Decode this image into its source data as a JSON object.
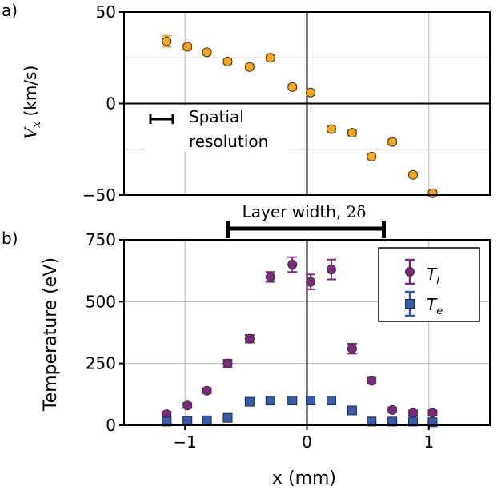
{
  "chart_data": [
    {
      "panel_label": "a)",
      "type": "scatter",
      "xlim": [
        -1.5,
        1.5
      ],
      "ylim": [
        -50,
        50
      ],
      "yticks": [
        -50,
        0,
        50
      ],
      "ytick_labels": [
        "−50",
        "0",
        "50"
      ],
      "ylabel": "V_x (km/s)",
      "ylabel_main": "V",
      "ylabel_sub": "x",
      "ylabel_unit": " (km/s)",
      "grid": true,
      "series": [
        {
          "color": "#f5a623",
          "x": [
            -1.15,
            -0.98,
            -0.82,
            -0.65,
            -0.47,
            -0.3,
            -0.12,
            0.03,
            0.2,
            0.37,
            0.53,
            0.7,
            0.87,
            1.03
          ],
          "y": [
            34,
            31,
            28,
            23,
            20,
            25,
            9,
            6,
            -14,
            -16,
            -29,
            -21,
            -39,
            -49
          ],
          "err": [
            3,
            1.5,
            1.5,
            1.5,
            1.5,
            1.5,
            1.5,
            1.5,
            1.5,
            1.5,
            1.5,
            1.5,
            1.5,
            1.5
          ]
        }
      ],
      "annotations": {
        "resolution_line1": "Spatial",
        "resolution_line2": "resolution",
        "layer_width_prefix": "Layer width, ",
        "layer_width_symbol": "2δ",
        "layer_width_range": [
          -0.65,
          0.63
        ]
      }
    },
    {
      "panel_label": "b)",
      "type": "scatter",
      "xlim": [
        -1.5,
        1.5
      ],
      "ylim": [
        0,
        750
      ],
      "xticks": [
        -1,
        0,
        1
      ],
      "xtick_labels": [
        "−1",
        "0",
        "1"
      ],
      "yticks": [
        0,
        250,
        500,
        750
      ],
      "ytick_labels": [
        "0",
        "250",
        "500",
        "750"
      ],
      "xlabel": "x (mm)",
      "ylabel": "Temperature (eV)",
      "grid": true,
      "legend_position": "top-right",
      "series": [
        {
          "name": "T_i",
          "legend_main": "T",
          "legend_sub": "i",
          "color": "#7b2a7e",
          "marker": "circle",
          "x": [
            -1.15,
            -0.98,
            -0.82,
            -0.65,
            -0.47,
            -0.3,
            -0.12,
            0.03,
            0.2,
            0.37,
            0.53,
            0.7,
            0.87,
            1.03
          ],
          "y": [
            45,
            80,
            140,
            250,
            350,
            600,
            650,
            580,
            630,
            310,
            180,
            62,
            50,
            50
          ],
          "err": [
            10,
            10,
            10,
            15,
            15,
            20,
            30,
            30,
            40,
            20,
            12,
            10,
            10,
            10
          ]
        },
        {
          "name": "T_e",
          "legend_main": "T",
          "legend_sub": "e",
          "color": "#3a5ba8",
          "marker": "square",
          "x": [
            -1.15,
            -0.98,
            -0.82,
            -0.65,
            -0.47,
            -0.3,
            -0.12,
            0.03,
            0.2,
            0.37,
            0.53,
            0.7,
            0.87,
            1.03
          ],
          "y": [
            15,
            18,
            20,
            30,
            95,
            100,
            100,
            100,
            100,
            60,
            15,
            15,
            15,
            12
          ],
          "err": [
            8,
            8,
            8,
            8,
            10,
            10,
            10,
            12,
            10,
            8,
            5,
            5,
            5,
            5
          ]
        }
      ]
    }
  ]
}
